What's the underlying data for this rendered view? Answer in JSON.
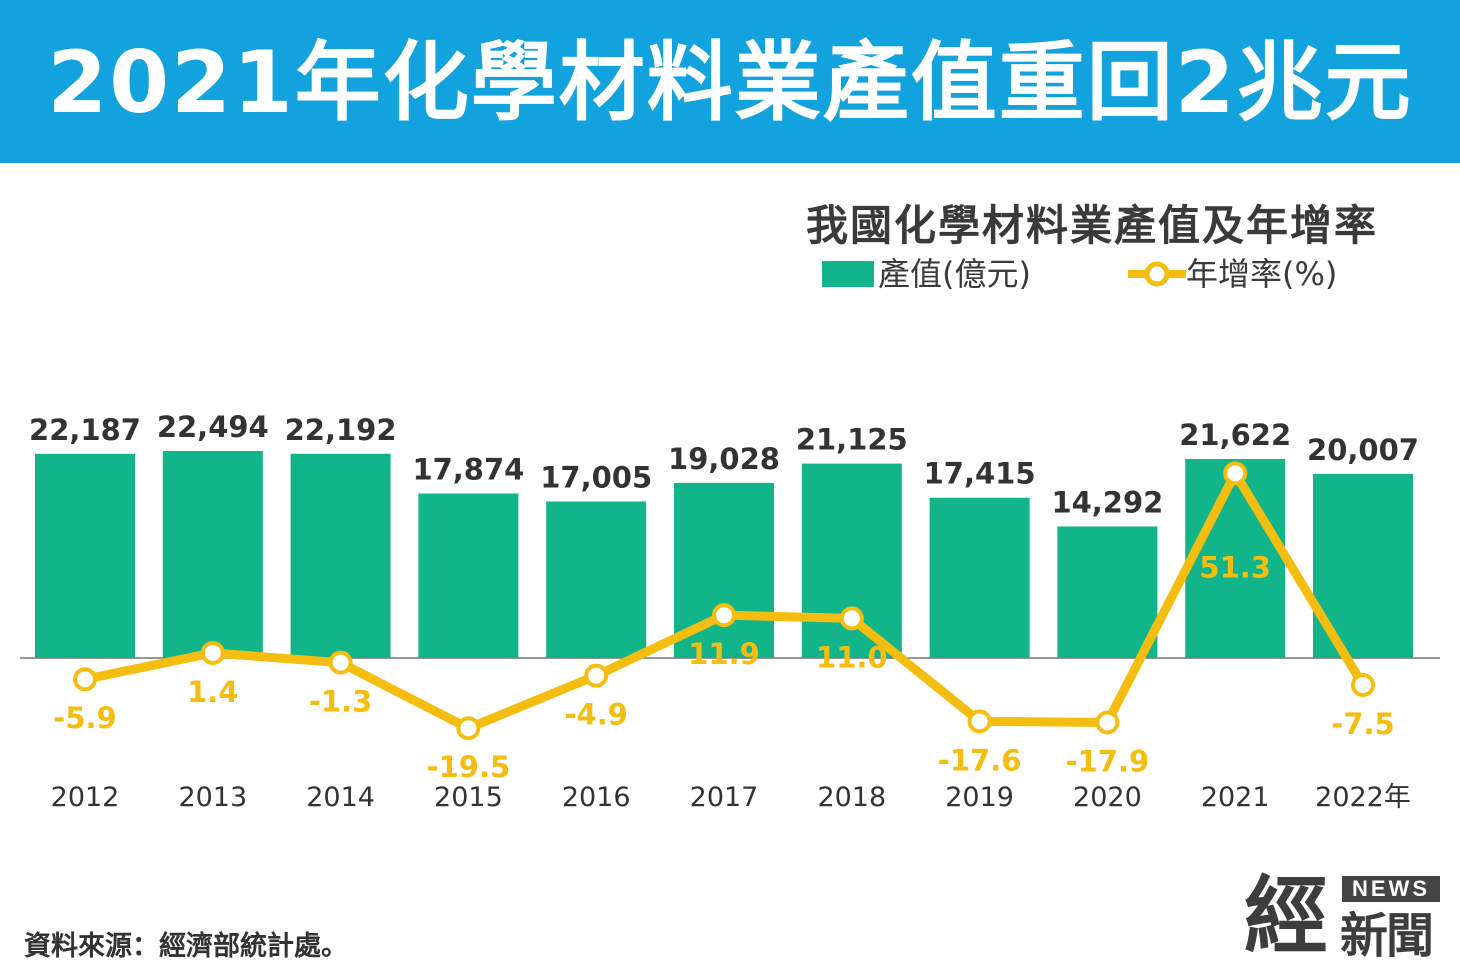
{
  "banner": {
    "title": "2021年化學材料業產值重回2兆元",
    "color": "#12a2de"
  },
  "chart_data": {
    "type": "bar",
    "title": "我國化學材料業產值及年增率",
    "categories": [
      "2012",
      "2013",
      "2014",
      "2015",
      "2016",
      "2017",
      "2018",
      "2019",
      "2020",
      "2021",
      "2022年"
    ],
    "series": [
      {
        "name": "產值(億元)",
        "type": "bar",
        "color": "#12b58a",
        "values": [
          22187,
          22494,
          22192,
          17874,
          17005,
          19028,
          21125,
          17415,
          14292,
          21622,
          20007
        ],
        "labels": [
          "22,187",
          "22,494",
          "22,192",
          "17,874",
          "17,005",
          "19,028",
          "21,125",
          "17,415",
          "14,292",
          "21,622",
          "20,007"
        ]
      },
      {
        "name": "年增率(%)",
        "type": "line",
        "color": "#f5bd0f",
        "values": [
          -5.9,
          1.4,
          -1.3,
          -19.5,
          -4.9,
          11.9,
          11.0,
          -17.6,
          -17.9,
          51.3,
          -7.5
        ],
        "labels": [
          "-5.9",
          "1.4",
          "-1.3",
          "-19.5",
          "-4.9",
          "11.9",
          "11.0",
          "-17.6",
          "-17.9",
          "51.3",
          "-7.5"
        ]
      }
    ],
    "legend_placement": "top-right",
    "grid": false
  },
  "source": "資料來源：經濟部統計處。",
  "logo": {
    "main": "經",
    "sub": "新聞",
    "badge": "NEWS"
  }
}
